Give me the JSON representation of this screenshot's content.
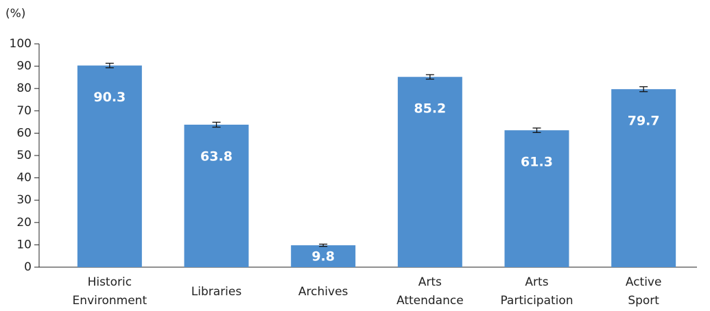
{
  "chart_data": {
    "type": "bar",
    "ylabel": "(%)",
    "categories": [
      "Historic Environment",
      "Libraries",
      "Archives",
      "Arts Attendance",
      "Arts Participation",
      "Active Sport"
    ],
    "values": [
      90.3,
      63.8,
      9.8,
      85.2,
      61.3,
      79.7
    ],
    "errors": [
      1.0,
      1.1,
      0.5,
      1.0,
      1.0,
      1.1
    ],
    "color": "#4f8fcf",
    "ylim": [
      0,
      100
    ],
    "yticks": [
      0,
      10,
      20,
      30,
      40,
      50,
      60,
      70,
      80,
      90,
      100
    ],
    "grid": false
  }
}
